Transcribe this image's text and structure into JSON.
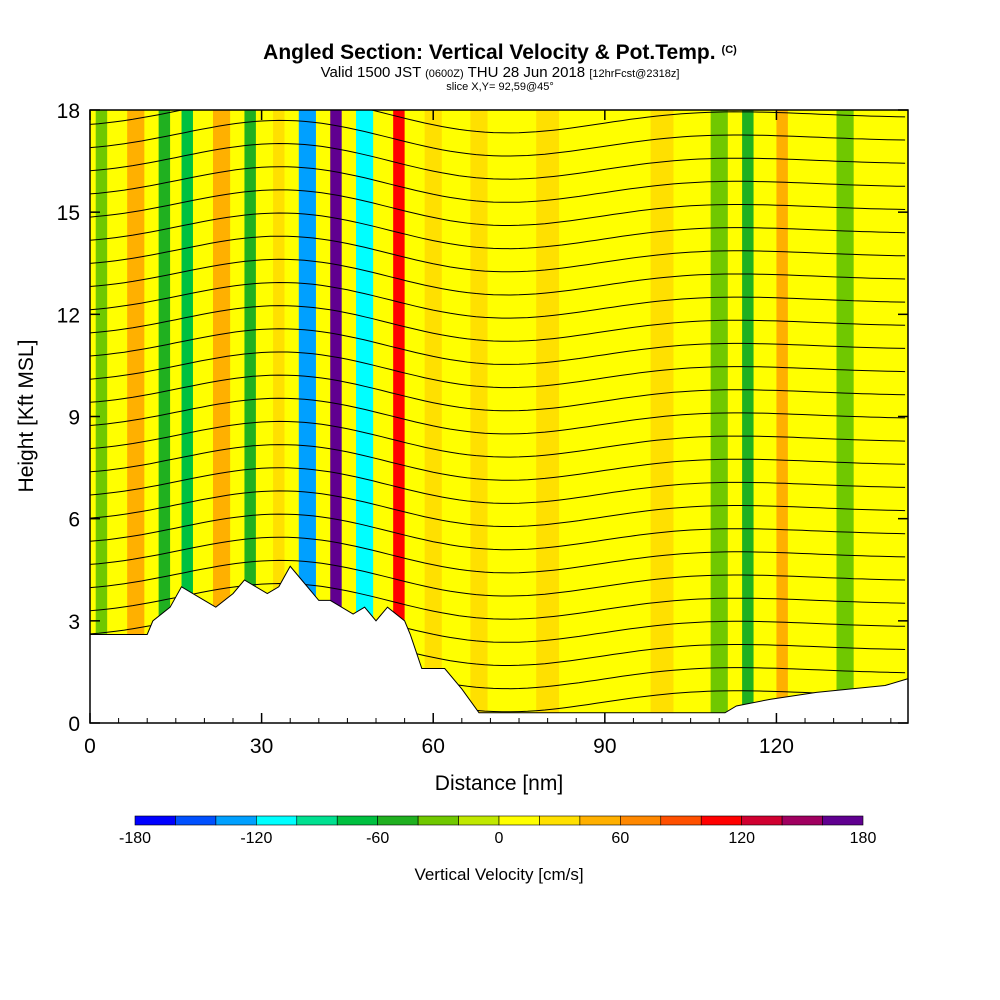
{
  "header": {
    "title": "Angled Section: Vertical Velocity & Pot.Temp.",
    "title_units": "(C)",
    "valid_prefix": "Valid 1500 JST",
    "valid_utc": "(0600Z)",
    "valid_date": "THU 28 Jun 2018",
    "valid_fcst": "[12hrFcst@2318z]",
    "slice": "slice X,Y= 92,59@45°"
  },
  "chart_data": {
    "type": "heatmap",
    "title": "Angled Section: Vertical Velocity & Pot.Temp.",
    "xlabel": "Distance [nm]",
    "ylabel": "Height [Kft MSL]",
    "xlim": [
      0,
      143
    ],
    "ylim": [
      0,
      18
    ],
    "x_ticks": [
      0,
      30,
      60,
      90,
      120
    ],
    "y_ticks": [
      0,
      3,
      6,
      9,
      12,
      15,
      18
    ],
    "colorbar": {
      "label": "Vertical Velocity [cm/s]",
      "min": -180,
      "max": 180,
      "step": 20,
      "tick_values": [
        -180,
        -120,
        -60,
        0,
        60,
        120,
        180
      ],
      "colors": [
        "#0000ff",
        "#0050ff",
        "#00a0ff",
        "#00ffff",
        "#00e090",
        "#00c040",
        "#20b020",
        "#70c800",
        "#c0e800",
        "#ffff00",
        "#ffe000",
        "#ffb000",
        "#ff8800",
        "#ff5000",
        "#ff0000",
        "#d00030",
        "#a00060",
        "#600090"
      ]
    },
    "columns": [
      {
        "x": 2,
        "w": 2,
        "value": -30
      },
      {
        "x": 8,
        "w": 3,
        "value": 50
      },
      {
        "x": 13,
        "w": 2,
        "value": -50
      },
      {
        "x": 17,
        "w": 2,
        "value": -70
      },
      {
        "x": 23,
        "w": 3,
        "value": 50
      },
      {
        "x": 28,
        "w": 2,
        "value": -60
      },
      {
        "x": 33,
        "w": 2,
        "value": 30
      },
      {
        "x": 38,
        "w": 3,
        "value": -140
      },
      {
        "x": 43,
        "w": 2,
        "value": 170
      },
      {
        "x": 48,
        "w": 3,
        "value": -120
      },
      {
        "x": 54,
        "w": 2,
        "value": 100
      },
      {
        "x": 60,
        "w": 3,
        "value": 30
      },
      {
        "x": 68,
        "w": 3,
        "value": 30
      },
      {
        "x": 80,
        "w": 4,
        "value": 30
      },
      {
        "x": 100,
        "w": 4,
        "value": 30
      },
      {
        "x": 110,
        "w": 3,
        "value": -30
      },
      {
        "x": 115,
        "w": 2,
        "value": -60
      },
      {
        "x": 121,
        "w": 2,
        "value": 40
      },
      {
        "x": 132,
        "w": 3,
        "value": -30
      }
    ],
    "terrain_kft": [
      [
        0,
        2.6
      ],
      [
        10,
        2.6
      ],
      [
        11,
        3.0
      ],
      [
        14,
        3.4
      ],
      [
        16,
        4.0
      ],
      [
        20,
        3.6
      ],
      [
        22,
        3.4
      ],
      [
        25,
        3.8
      ],
      [
        27,
        4.2
      ],
      [
        31,
        3.8
      ],
      [
        33,
        4.0
      ],
      [
        35,
        4.6
      ],
      [
        37,
        4.2
      ],
      [
        40,
        3.6
      ],
      [
        42,
        3.6
      ],
      [
        46,
        3.2
      ],
      [
        48,
        3.4
      ],
      [
        50,
        3.0
      ],
      [
        52,
        3.4
      ],
      [
        55,
        3.0
      ],
      [
        56,
        2.6
      ],
      [
        58,
        1.6
      ],
      [
        62,
        1.6
      ],
      [
        65,
        1.0
      ],
      [
        68,
        0.3
      ],
      [
        111,
        0.3
      ],
      [
        113,
        0.5
      ],
      [
        119,
        0.7
      ],
      [
        127,
        0.9
      ],
      [
        139,
        1.1
      ],
      [
        143,
        1.3
      ]
    ],
    "contours": 27
  }
}
